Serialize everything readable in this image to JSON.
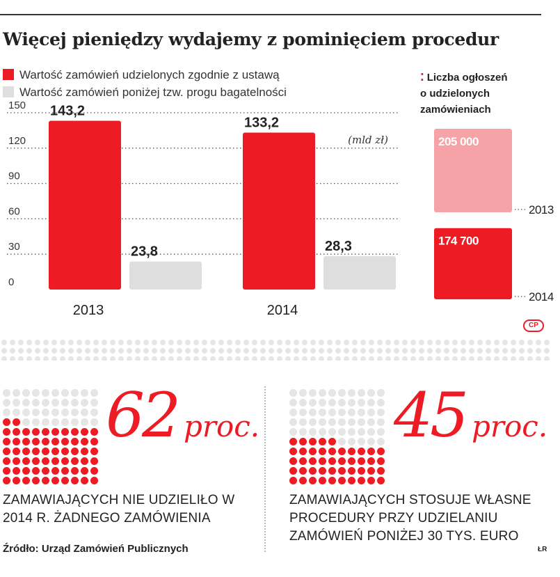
{
  "title": "Więcej pieniędzy wydajemy z pominięciem procedur",
  "legend": [
    {
      "label": "Wartość zamówień udzielonych zgodnie z ustawą",
      "color": "#ed1c24"
    },
    {
      "label": "Wartość zamówień poniżej tzw. progu bagatelności",
      "color": "#dedede"
    }
  ],
  "chart_data": [
    {
      "type": "bar",
      "categories": [
        "2013",
        "2014"
      ],
      "series": [
        {
          "name": "Wartość zamówień udzielonych zgodnie z ustawą",
          "values": [
            143.2,
            133.2
          ],
          "labels": [
            "143,2",
            "133,2"
          ],
          "color": "#ed1c24"
        },
        {
          "name": "Wartość zamówień poniżej tzw. progu bagatelności",
          "values": [
            23.8,
            28.3
          ],
          "labels": [
            "23,8",
            "28,3"
          ],
          "color": "#dedede"
        }
      ],
      "unit": "(mld zł)",
      "yticks": [
        0,
        30,
        60,
        90,
        120,
        150
      ],
      "ylim": [
        0,
        150
      ],
      "grid": true
    },
    {
      "type": "bar",
      "title": "Liczba ogłoszeń o udzielonych zamówieniach",
      "title_lines": [
        "Liczba ogłoszeń",
        "o udzielonych",
        "zamówieniach"
      ],
      "categories": [
        "2013",
        "2014"
      ],
      "values": [
        205000,
        174700
      ],
      "labels": [
        "205 000",
        "174 700"
      ],
      "colors": [
        "#f5a3a6",
        "#ed1c24"
      ]
    }
  ],
  "stats": [
    {
      "number": "62",
      "unit": "proc.",
      "value": 62,
      "text": "ZAMAWIAJĄCYCH NIE UDZIELIŁO W 2014 R. ŻADNEGO ZAMÓWIENIA"
    },
    {
      "number": "45",
      "unit": "proc.",
      "value": 45,
      "text": "ZAMAWIAJĄCYCH STOSUJE WŁASNE PROCEDURY PRZY UDZIELANIU ZAMÓWIEŃ PONIŻEJ 30 TYS. EURO"
    }
  ],
  "source": "Źródło: Urząd Zamówień Publicznych",
  "logo": "CP",
  "author": "ŁR",
  "colors": {
    "accent": "#ed1c24",
    "grey": "#dedede",
    "pink": "#f5a3a6",
    "dot_grey": "#e5e5e5"
  }
}
